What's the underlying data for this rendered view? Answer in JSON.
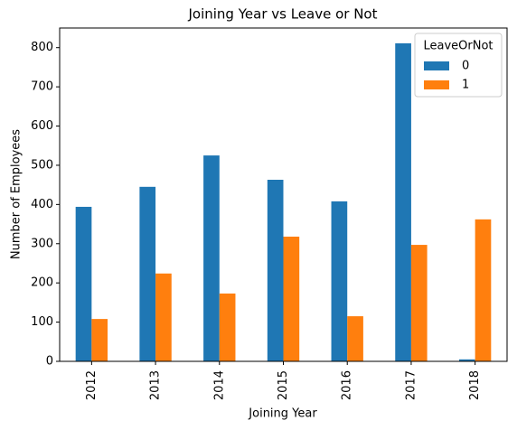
{
  "chart_data": {
    "type": "bar",
    "title": "Joining Year vs Leave or Not",
    "xlabel": "Joining Year",
    "ylabel": "Number of Employees",
    "categories": [
      "2012",
      "2013",
      "2014",
      "2015",
      "2016",
      "2017",
      "2018"
    ],
    "series": [
      {
        "name": "0",
        "color": "#1f77b4",
        "values": [
          394,
          445,
          525,
          463,
          408,
          811,
          5
        ]
      },
      {
        "name": "1",
        "color": "#ff7f0e",
        "values": [
          108,
          224,
          173,
          318,
          115,
          297,
          362
        ]
      }
    ],
    "ylim": [
      0,
      850
    ],
    "yticks": [
      0,
      100,
      200,
      300,
      400,
      500,
      600,
      700,
      800
    ],
    "legend_title": "LeaveOrNot",
    "legend_position": "upper right"
  }
}
